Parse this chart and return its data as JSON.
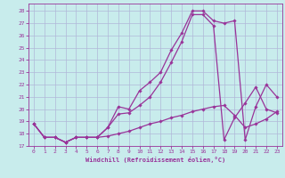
{
  "xlabel": "Windchill (Refroidissement éolien,°C)",
  "bg_color": "#c8ecec",
  "grid_color": "#b0b8d8",
  "line_color": "#993399",
  "xlim": [
    -0.5,
    23.5
  ],
  "ylim": [
    17,
    28.6
  ],
  "yticks": [
    17,
    18,
    19,
    20,
    21,
    22,
    23,
    24,
    25,
    26,
    27,
    28
  ],
  "xticks": [
    0,
    1,
    2,
    3,
    4,
    5,
    6,
    7,
    8,
    9,
    10,
    11,
    12,
    13,
    14,
    15,
    16,
    17,
    18,
    19,
    20,
    21,
    22,
    23
  ],
  "y_main": [
    18.8,
    17.7,
    17.7,
    17.3,
    17.7,
    17.7,
    17.7,
    18.5,
    20.2,
    20.0,
    21.5,
    22.2,
    23.0,
    24.8,
    26.2,
    28.0,
    28.0,
    27.2,
    27.0,
    27.2,
    17.5,
    20.2,
    22.0,
    21.0
  ],
  "y_mid": [
    18.8,
    17.7,
    17.7,
    17.3,
    17.7,
    17.7,
    17.7,
    18.5,
    19.6,
    19.7,
    20.3,
    21.0,
    22.2,
    23.8,
    25.5,
    27.7,
    27.7,
    26.8,
    17.5,
    19.3,
    20.5,
    21.8,
    20.0,
    19.7
  ],
  "y_low": [
    18.8,
    17.7,
    17.7,
    17.3,
    17.7,
    17.7,
    17.7,
    17.8,
    18.0,
    18.2,
    18.5,
    18.8,
    19.0,
    19.3,
    19.5,
    19.8,
    20.0,
    20.2,
    20.3,
    19.5,
    18.5,
    18.8,
    19.2,
    19.8
  ]
}
